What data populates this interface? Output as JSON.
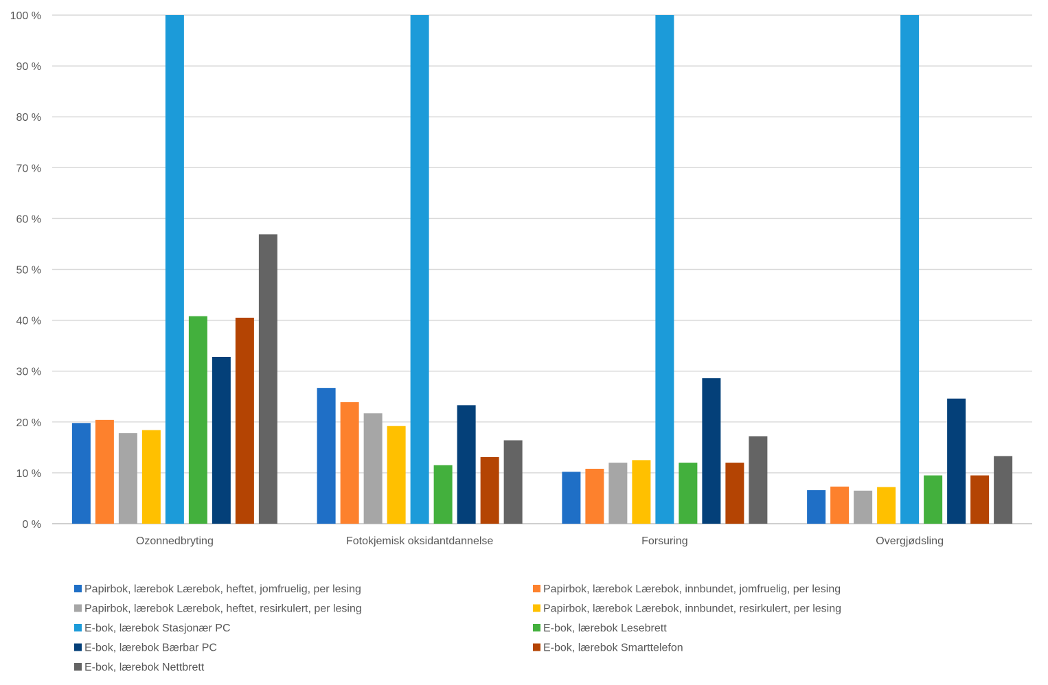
{
  "chart_data": {
    "type": "bar",
    "title": "",
    "xlabel": "",
    "ylabel": "",
    "ylim": [
      0,
      100
    ],
    "y_ticks": [
      "0 %",
      "10 %",
      "20 %",
      "30 %",
      "40 %",
      "50 %",
      "60 %",
      "70 %",
      "80 %",
      "90 %",
      "100 %"
    ],
    "categories": [
      "Ozonnedbryting",
      "Fotokjemisk oksidantdannelse",
      "Forsuring",
      "Overgjødsling"
    ],
    "series": [
      {
        "name": "Papirbok, lærebok Lærebok, heftet, jomfruelig, per lesing",
        "color": "#1f6fc6",
        "values": [
          19.8,
          26.7,
          10.2,
          6.6
        ]
      },
      {
        "name": "Papirbok, lærebok Lærebok, innbundet, jomfruelig, per lesing",
        "color": "#fd812d",
        "values": [
          20.4,
          23.9,
          10.8,
          7.3
        ]
      },
      {
        "name": "Papirbok, lærebok Lærebok, heftet, resirkulert, per lesing",
        "color": "#a6a6a6",
        "values": [
          17.8,
          21.7,
          12.0,
          6.5
        ]
      },
      {
        "name": "Papirbok, lærebok Lærebok, innbundet, resirkulert, per lesing",
        "color": "#ffc000",
        "values": [
          18.4,
          19.2,
          12.5,
          7.2
        ]
      },
      {
        "name": "E-bok, lærebok Stasjonær PC",
        "color": "#1c9bd9",
        "values": [
          100,
          100,
          100,
          100
        ]
      },
      {
        "name": "E-bok, lærebok Lesebrett",
        "color": "#43b03d",
        "values": [
          40.8,
          11.5,
          12.0,
          9.5
        ]
      },
      {
        "name": "E-bok, lærebok Bærbar PC",
        "color": "#044079",
        "values": [
          32.8,
          23.3,
          28.6,
          24.6
        ]
      },
      {
        "name": "E-bok, lærebok Smarttelefon",
        "color": "#b44403",
        "values": [
          40.5,
          13.1,
          12.0,
          9.5
        ]
      },
      {
        "name": "E-bok, lærebok Nettbrett",
        "color": "#646464",
        "values": [
          56.9,
          16.4,
          17.2,
          13.3
        ]
      }
    ],
    "legend_position": "bottom",
    "grid": true
  }
}
